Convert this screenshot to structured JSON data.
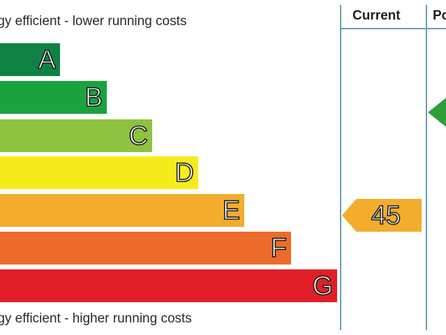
{
  "chart_data": {
    "type": "bar",
    "categories": [
      "A",
      "B",
      "C",
      "D",
      "E",
      "F",
      "G"
    ],
    "colors": [
      "#0f8243",
      "#1aa33c",
      "#8dc33f",
      "#f7ec1b",
      "#f3ac2c",
      "#ed6b2a",
      "#e01e27"
    ],
    "top_caption": "rgy efficient - lower running costs",
    "bottom_caption": "rgy efficient - higher running costs",
    "columns": [
      "Current",
      "Po"
    ],
    "current_rating": 45,
    "current_band": "E",
    "potential_band": "B",
    "potential_color": "#2e9e3a"
  }
}
